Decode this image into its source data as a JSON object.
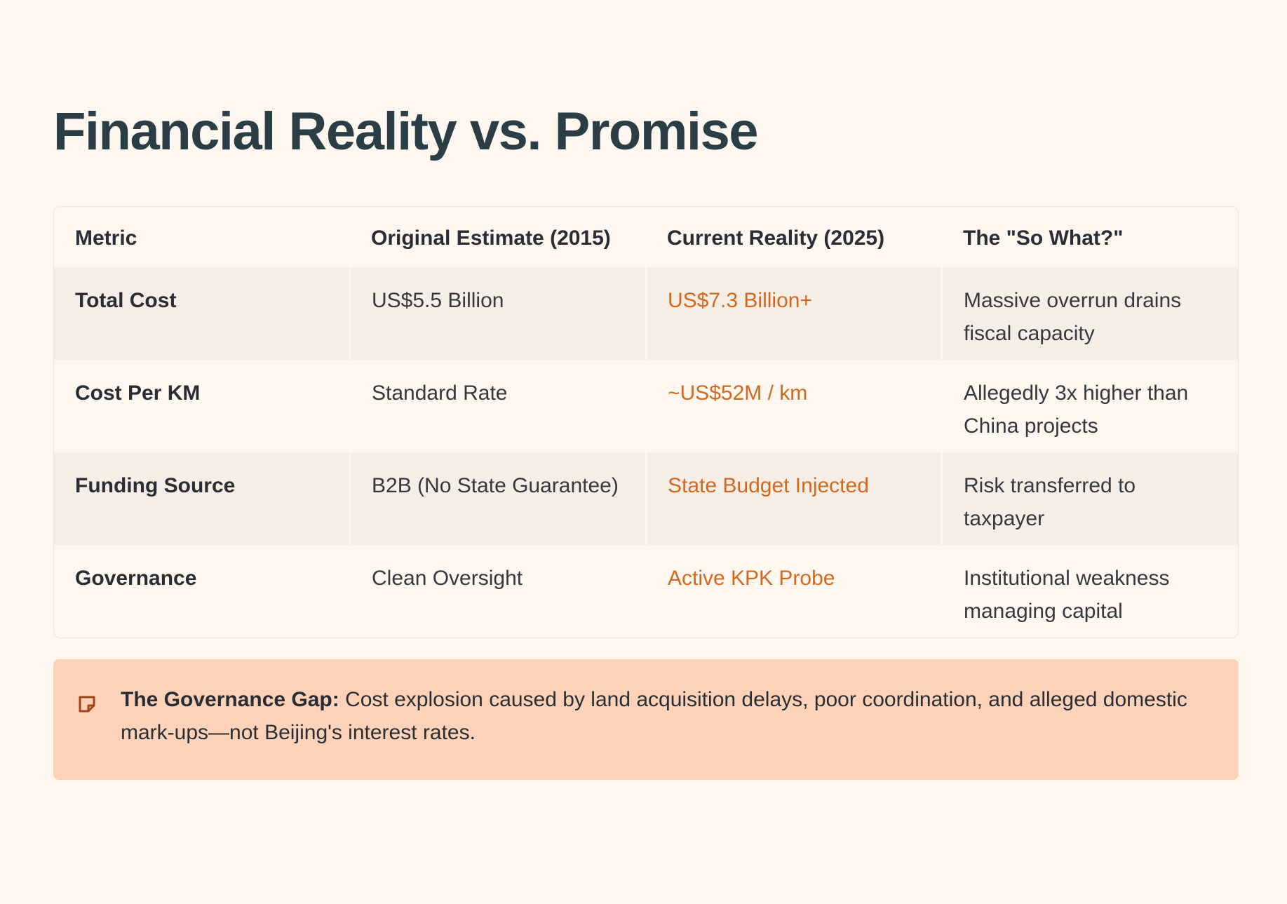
{
  "title": "Financial Reality vs. Promise",
  "table": {
    "headers": [
      "Metric",
      "Original Estimate (2015)",
      "Current Reality (2025)",
      "The \"So What?\""
    ],
    "rows": [
      {
        "metric": "Total Cost",
        "original": "US$5.5 Billion",
        "reality": "US$7.3 Billion+",
        "so_what": "Massive overrun drains fiscal capacity"
      },
      {
        "metric": "Cost Per KM",
        "original": "Standard Rate",
        "reality": "~US$52M / km",
        "so_what": "Allegedly 3x higher than China projects"
      },
      {
        "metric": "Funding Source",
        "original": "B2B (No State Guarantee)",
        "reality": "State Budget Injected",
        "so_what": "Risk transferred to taxpayer"
      },
      {
        "metric": "Governance",
        "original": "Clean Oversight",
        "reality": "Active KPK Probe",
        "so_what": "Institutional weakness managing capital"
      }
    ]
  },
  "callout": {
    "icon": "note-icon",
    "label": "The Governance Gap:",
    "text": " Cost explosion caused by land acquisition delays, poor coordination, and alleged domestic mark-ups—not Beijing's interest rates."
  },
  "colors": {
    "background": "#fdf7f0",
    "title": "#2c3e45",
    "accent": "#d2691e",
    "row_shaded": "#f5eee7",
    "callout_bg": "#fcd3b8",
    "icon": "#a0441a"
  }
}
